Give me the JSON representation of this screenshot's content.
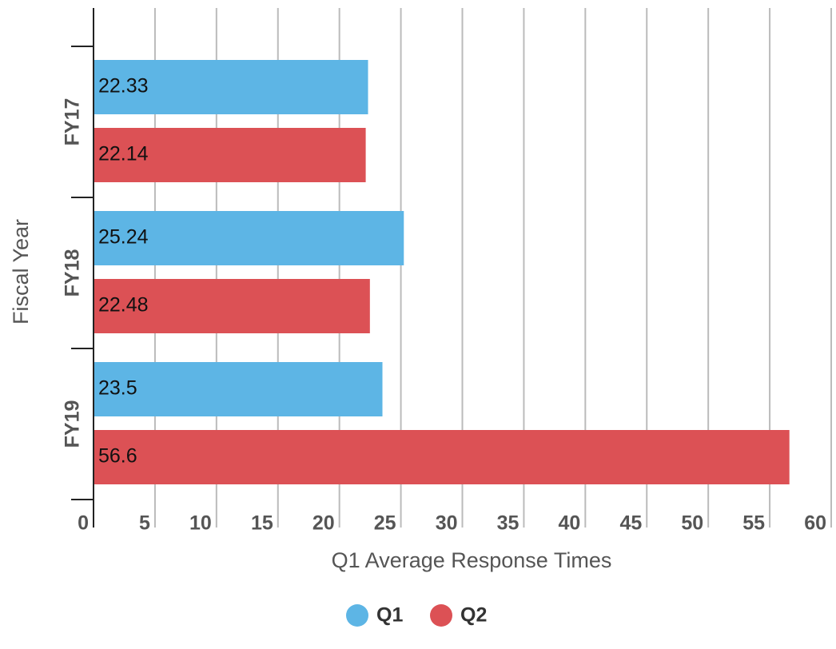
{
  "chart_data": {
    "type": "bar",
    "orientation": "horizontal",
    "x_label": "Q1 Average Response Times",
    "y_label": "Fiscal Year",
    "categories": [
      "FY17",
      "FY18",
      "FY19"
    ],
    "series": [
      {
        "name": "Q1",
        "color": "#5db5e5",
        "values": [
          22.33,
          25.24,
          23.5
        ]
      },
      {
        "name": "Q2",
        "color": "#dc5155",
        "values": [
          22.14,
          22.48,
          56.6
        ]
      }
    ],
    "xlim": [
      0,
      60
    ],
    "xticks": [
      0,
      5,
      10,
      15,
      20,
      25,
      30,
      35,
      40,
      45,
      50,
      55,
      60
    ],
    "grid": true,
    "legend": "bottom"
  }
}
